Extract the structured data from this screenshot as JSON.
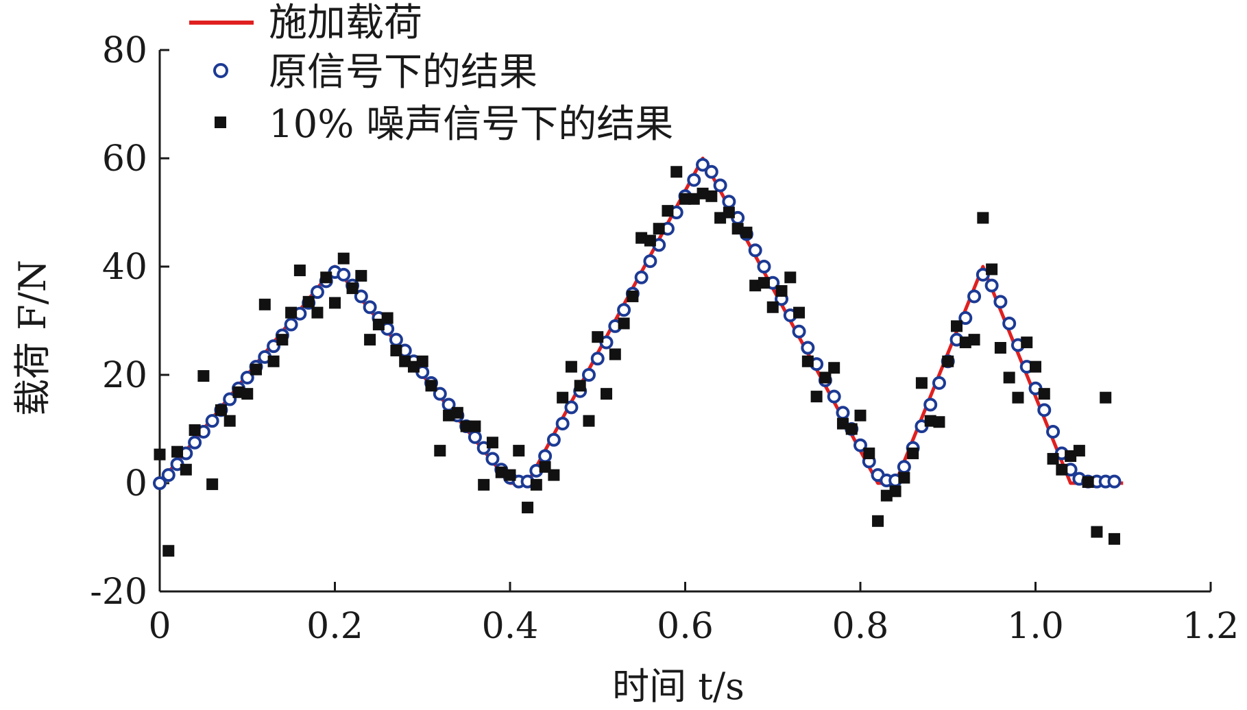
{
  "chart_data": {
    "type": "line",
    "xlabel": "时间 t/s",
    "ylabel": "载荷 F/N",
    "xlim": [
      0,
      1.2
    ],
    "ylim": [
      -20,
      80
    ],
    "x_ticks": [
      0,
      0.2,
      0.4,
      0.6,
      0.8,
      1.0,
      1.2
    ],
    "x_tick_labels": [
      "0",
      "0.2",
      "0.4",
      "0.6",
      "0.8",
      "1.0",
      "1.2"
    ],
    "y_ticks": [
      -20,
      0,
      20,
      40,
      60,
      80
    ],
    "y_tick_labels": [
      "-20",
      "0",
      "20",
      "40",
      "60",
      "80"
    ],
    "grid": false,
    "legend_position": "top-left",
    "colors": {
      "applied": "#e02020",
      "original": "#1c3a94",
      "noisy": "#111111",
      "axis": "#1a1a1a"
    },
    "series": [
      {
        "name": "施加载荷",
        "style": "line",
        "x": [
          0,
          0.2,
          0.4,
          0.42,
          0.62,
          0.82,
          0.84,
          0.94,
          1.04,
          1.1
        ],
        "y": [
          0,
          40,
          0,
          0,
          60,
          0,
          0,
          40,
          0,
          0
        ]
      },
      {
        "name": "原信号下的结果",
        "style": "open-circle",
        "x": [
          0,
          0.01,
          0.02,
          0.03,
          0.04,
          0.05,
          0.06,
          0.07,
          0.08,
          0.09,
          0.1,
          0.11,
          0.12,
          0.13,
          0.14,
          0.15,
          0.16,
          0.17,
          0.18,
          0.19,
          0.2,
          0.21,
          0.22,
          0.23,
          0.24,
          0.25,
          0.26,
          0.27,
          0.28,
          0.29,
          0.3,
          0.31,
          0.32,
          0.33,
          0.34,
          0.35,
          0.36,
          0.37,
          0.38,
          0.39,
          0.4,
          0.41,
          0.42,
          0.43,
          0.44,
          0.45,
          0.46,
          0.47,
          0.48,
          0.49,
          0.5,
          0.51,
          0.52,
          0.53,
          0.54,
          0.55,
          0.56,
          0.57,
          0.58,
          0.59,
          0.6,
          0.61,
          0.62,
          0.63,
          0.64,
          0.65,
          0.66,
          0.67,
          0.68,
          0.69,
          0.7,
          0.71,
          0.72,
          0.73,
          0.74,
          0.75,
          0.76,
          0.77,
          0.78,
          0.79,
          0.8,
          0.81,
          0.82,
          0.83,
          0.84,
          0.85,
          0.86,
          0.87,
          0.88,
          0.89,
          0.9,
          0.91,
          0.92,
          0.93,
          0.94,
          0.95,
          0.96,
          0.97,
          0.98,
          0.99,
          1.0,
          1.01,
          1.02,
          1.03,
          1.04,
          1.05,
          1.06,
          1.07,
          1.08,
          1.09
        ],
        "y": [
          0,
          1.5,
          3.5,
          5.5,
          7.5,
          9.5,
          11.5,
          13.5,
          15.5,
          17.5,
          19.5,
          21.5,
          23.3,
          25.3,
          27.3,
          29.3,
          31.3,
          33.3,
          35.3,
          37.3,
          39,
          38.5,
          36.5,
          34.5,
          32.5,
          30.5,
          28.5,
          26.5,
          24.5,
          22.5,
          20.5,
          18.5,
          16.5,
          14.5,
          12.5,
          10.5,
          8.5,
          6.5,
          4.5,
          2.5,
          1,
          0.3,
          0.3,
          2.3,
          5,
          8,
          11,
          14,
          17,
          20,
          23,
          26,
          29,
          32,
          35,
          38,
          41,
          44,
          47,
          50,
          53,
          56,
          58.8,
          57.5,
          55,
          52,
          49,
          46,
          43,
          40,
          37,
          34,
          31,
          28,
          25,
          22,
          19,
          16,
          13,
          10,
          7,
          4,
          1.5,
          0.5,
          0.5,
          3,
          6.5,
          10.5,
          14.5,
          18.5,
          22.5,
          26.5,
          30.5,
          34.5,
          38.5,
          36.5,
          33.5,
          29.5,
          25.5,
          21.5,
          17.5,
          13.5,
          9.5,
          5.5,
          2.5,
          0.8,
          0.3,
          0.3,
          0.3,
          0.3
        ]
      },
      {
        "name": "10% 噪声信号下的结果",
        "style": "filled-square",
        "x": [
          0,
          0.01,
          0.02,
          0.03,
          0.04,
          0.05,
          0.06,
          0.07,
          0.08,
          0.09,
          0.1,
          0.11,
          0.12,
          0.13,
          0.14,
          0.15,
          0.16,
          0.17,
          0.18,
          0.19,
          0.2,
          0.21,
          0.22,
          0.23,
          0.24,
          0.25,
          0.26,
          0.27,
          0.28,
          0.29,
          0.3,
          0.31,
          0.32,
          0.33,
          0.34,
          0.35,
          0.36,
          0.37,
          0.38,
          0.39,
          0.4,
          0.41,
          0.42,
          0.43,
          0.44,
          0.45,
          0.46,
          0.47,
          0.48,
          0.49,
          0.5,
          0.51,
          0.52,
          0.53,
          0.54,
          0.55,
          0.56,
          0.57,
          0.58,
          0.59,
          0.6,
          0.61,
          0.62,
          0.63,
          0.64,
          0.65,
          0.66,
          0.67,
          0.68,
          0.69,
          0.7,
          0.71,
          0.72,
          0.73,
          0.74,
          0.75,
          0.76,
          0.77,
          0.78,
          0.79,
          0.8,
          0.81,
          0.82,
          0.83,
          0.84,
          0.85,
          0.86,
          0.87,
          0.88,
          0.89,
          0.9,
          0.91,
          0.92,
          0.93,
          0.94,
          0.95,
          0.96,
          0.97,
          0.98,
          0.99,
          1.0,
          1.01,
          1.02,
          1.03,
          1.04,
          1.05,
          1.06,
          1.07,
          1.08,
          1.09
        ],
        "y": [
          5.3,
          -12.5,
          5.8,
          2.5,
          9.8,
          19.8,
          -0.2,
          13.5,
          11.5,
          16.8,
          16.5,
          21,
          33,
          22.5,
          26.5,
          31.5,
          39.3,
          33.5,
          31.5,
          38,
          33.3,
          41.5,
          36,
          38.3,
          26.5,
          29.3,
          30.5,
          24.5,
          22.5,
          21.5,
          22.5,
          18,
          6,
          12.5,
          13,
          10.5,
          10.5,
          -0.3,
          7.5,
          2,
          1.5,
          6,
          -4.5,
          -0.3,
          3,
          1.5,
          15.8,
          21.5,
          18,
          11.5,
          27,
          16.5,
          23.8,
          29.5,
          34.5,
          45.3,
          44.8,
          47,
          50.3,
          57.5,
          52.5,
          52.5,
          53.5,
          53,
          49,
          50,
          47,
          46.3,
          36.5,
          37,
          32.5,
          35.5,
          38,
          31.5,
          22.5,
          16,
          19.5,
          21.3,
          11,
          10,
          12.5,
          5.5,
          -7,
          -2.3,
          -1.5,
          1,
          5.5,
          18.5,
          11.5,
          11.3,
          22.5,
          29,
          26,
          26.5,
          49,
          39.5,
          25,
          19.5,
          15.8,
          26,
          21.5,
          16.5,
          4.5,
          2.5,
          5,
          6,
          0.2,
          -9,
          15.8,
          -10.3
        ]
      }
    ]
  }
}
